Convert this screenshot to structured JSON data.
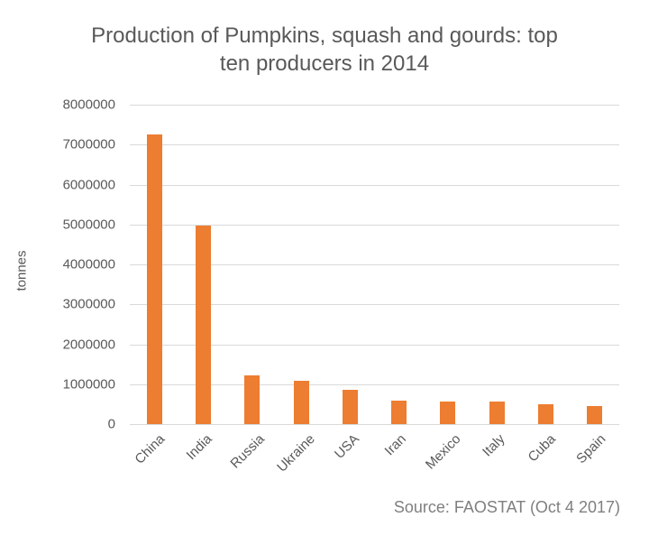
{
  "chart_data": {
    "type": "bar",
    "title": "Production of Pumpkins, squash and gourds: top ten producers in 2014",
    "title_lines": [
      "Production of Pumpkins, squash and gourds: top",
      "ten producers in 2014"
    ],
    "xlabel": "",
    "ylabel": "tonnes",
    "categories": [
      "China",
      "India",
      "Russia",
      "Ukraine",
      "USA",
      "Iran",
      "Mexico",
      "Italy",
      "Cuba",
      "Spain"
    ],
    "values": [
      7250000,
      4980000,
      1230000,
      1090000,
      860000,
      590000,
      570000,
      570000,
      490000,
      460000
    ],
    "ylim": [
      0,
      8000000
    ],
    "yticks": [
      "0",
      "1000000",
      "2000000",
      "3000000",
      "4000000",
      "5000000",
      "6000000",
      "7000000",
      "8000000"
    ],
    "grid": true,
    "legend": null,
    "bar_color": "#ED7D31",
    "annotations": [
      "Source: FAOSTAT (Oct 4 2017)"
    ]
  },
  "source_note": "Source: FAOSTAT (Oct 4 2017)"
}
